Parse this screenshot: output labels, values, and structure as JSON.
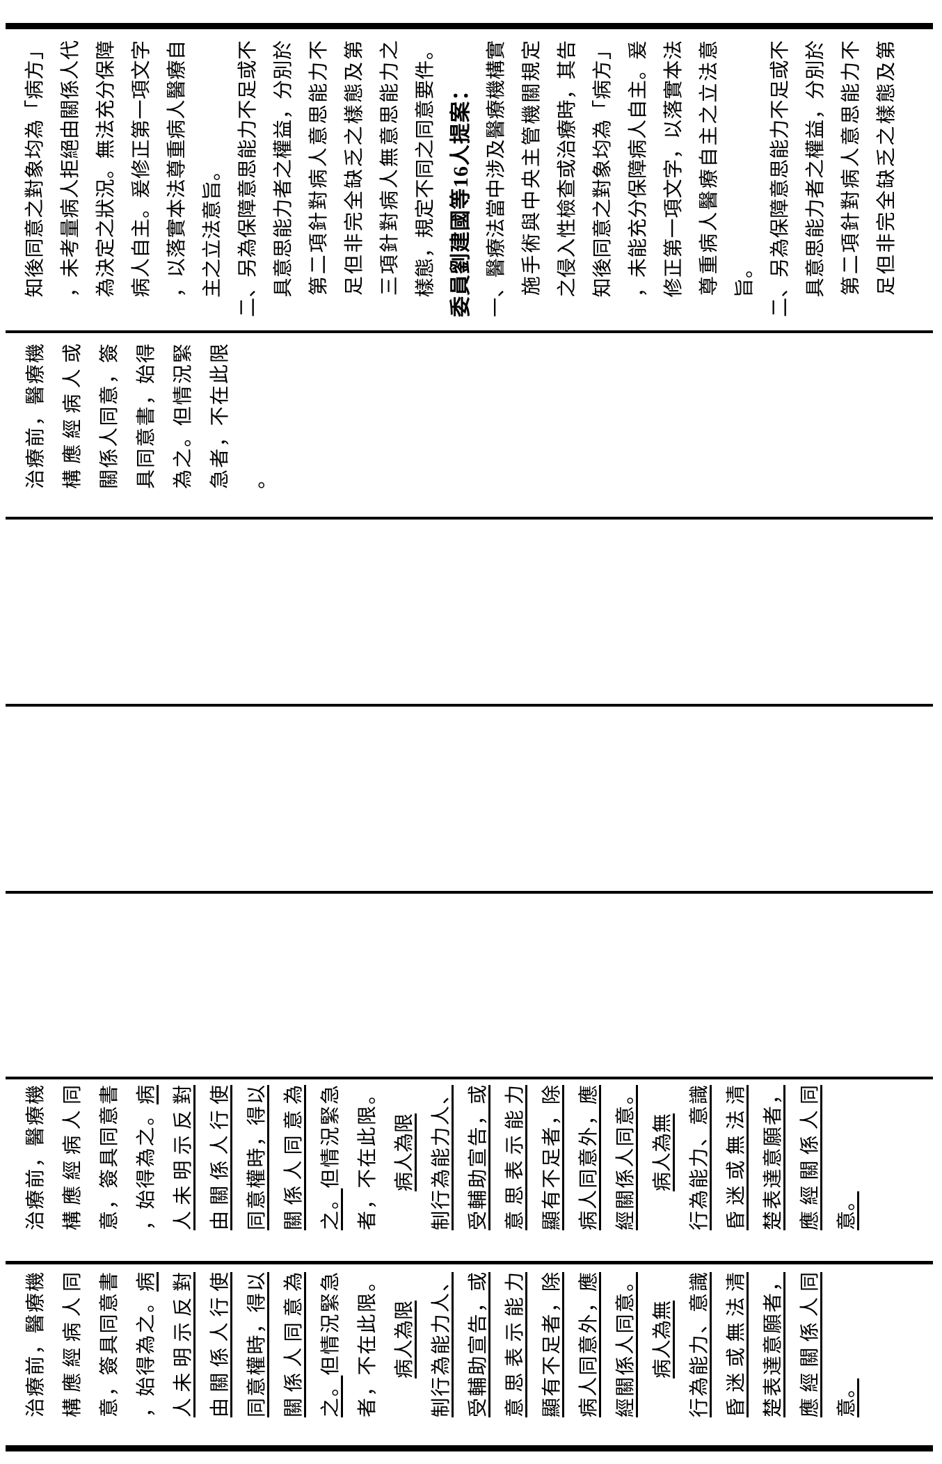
{
  "page": {
    "background_color": "#ffffff",
    "ink_color": "#000000",
    "description": "Rotated scanned page of a Legislative Yuan bill comparison table (醫療法 amendment)",
    "orientation": "landscape table rotated 90deg counter-clockwise on portrait page"
  },
  "table": {
    "line_sets": {
      "proposal_lines": [
        {
          "seg": [
            {
              "t": "治療前，醫療機"
            }
          ]
        },
        {
          "seg": [
            {
              "t": "構應經病人同"
            }
          ]
        },
        {
          "seg": [
            {
              "t": "意，簽具同意書"
            }
          ]
        },
        {
          "seg": [
            {
              "t": "，始得為之。"
            },
            {
              "t": "病",
              "u": true
            }
          ]
        },
        {
          "seg": [
            {
              "t": "人未明示反對",
              "u": true
            }
          ]
        },
        {
          "seg": [
            {
              "t": "由關係人行使",
              "u": true
            }
          ]
        },
        {
          "seg": [
            {
              "t": "同意權時，得以",
              "u": true
            }
          ]
        },
        {
          "seg": [
            {
              "t": "關係人同意為",
              "u": true
            }
          ]
        },
        {
          "seg": [
            {
              "t": "之。",
              "u": true
            },
            {
              "t": "但情況緊急"
            }
          ]
        },
        {
          "seg": [
            {
              "t": "者，不在此限。"
            }
          ]
        },
        {
          "seg": [
            {
              "t": "　　"
            },
            {
              "t": "病人為限",
              "u": true
            }
          ],
          "short": true
        },
        {
          "seg": [
            {
              "t": "制行為能力人、",
              "u": true
            }
          ]
        },
        {
          "seg": [
            {
              "t": "受輔助宣告，或",
              "u": true
            }
          ]
        },
        {
          "seg": [
            {
              "t": "意思表示能力",
              "u": true
            }
          ]
        },
        {
          "seg": [
            {
              "t": "顯有不足者，除",
              "u": true
            }
          ]
        },
        {
          "seg": [
            {
              "t": "病人同意外，應",
              "u": true
            }
          ]
        },
        {
          "seg": [
            {
              "t": "經關係人同意。",
              "u": true
            }
          ]
        },
        {
          "seg": [
            {
              "t": "　　"
            },
            {
              "t": "病人為無",
              "u": true
            }
          ],
          "short": true
        },
        {
          "seg": [
            {
              "t": "行為能力、意識",
              "u": true
            }
          ]
        },
        {
          "seg": [
            {
              "t": "昏迷或無法清",
              "u": true
            }
          ]
        },
        {
          "seg": [
            {
              "t": "楚表達意願者，",
              "u": true
            }
          ]
        },
        {
          "seg": [
            {
              "t": "應經關係人同",
              "u": true
            }
          ]
        },
        {
          "seg": [
            {
              "t": "意。",
              "u": true
            }
          ],
          "short": true
        }
      ],
      "current_lines": [
        {
          "seg": [
            {
              "t": "治療前，醫療機"
            }
          ]
        },
        {
          "seg": [
            {
              "t": "構應經病人或"
            }
          ]
        },
        {
          "seg": [
            {
              "t": "關係人同意，簽"
            }
          ]
        },
        {
          "seg": [
            {
              "t": "具同意書，始得"
            }
          ]
        },
        {
          "seg": [
            {
              "t": "為之。但情況緊"
            }
          ]
        },
        {
          "seg": [
            {
              "t": "急者，不在此限"
            }
          ]
        },
        {
          "seg": [
            {
              "t": "。"
            }
          ],
          "short": true
        }
      ],
      "explanation_lines": [
        {
          "seg": [
            {
              "t": "　知後同意之對象均為「病方」"
            }
          ]
        },
        {
          "seg": [
            {
              "t": "　，未考量病人拒絕由關係人代"
            }
          ]
        },
        {
          "seg": [
            {
              "t": "　為決定之狀況。無法充分保障"
            }
          ]
        },
        {
          "seg": [
            {
              "t": "　病人自主。爰修正第一項文字"
            }
          ]
        },
        {
          "seg": [
            {
              "t": "　，以落實本法尊重病人醫療自"
            }
          ]
        },
        {
          "seg": [
            {
              "t": "　主之立法意旨。"
            }
          ],
          "short": true
        },
        {
          "seg": [
            {
              "t": "二、另為保障意思能力不足或不"
            }
          ]
        },
        {
          "seg": [
            {
              "t": "　具意思能力者之權益，分別於"
            }
          ]
        },
        {
          "seg": [
            {
              "t": "　第二項針對病人意思能力不"
            }
          ]
        },
        {
          "seg": [
            {
              "t": "　足但非完全缺乏之樣態及第"
            }
          ]
        },
        {
          "seg": [
            {
              "t": "　三項針對病人無意思能力之"
            }
          ]
        },
        {
          "seg": [
            {
              "t": "　樣態，規定不同之同意要件。"
            }
          ]
        },
        {
          "seg": [
            {
              "t": "委員劉建國等16人提案："
            }
          ],
          "short": true,
          "bold": true
        },
        {
          "seg": [
            {
              "t": "一、醫療法當中涉及醫療機構實"
            }
          ]
        },
        {
          "seg": [
            {
              "t": "　施手術與中央主管機關規定"
            }
          ]
        },
        {
          "seg": [
            {
              "t": "　之侵入性檢查或治療時，其告"
            }
          ]
        },
        {
          "seg": [
            {
              "t": "　知後同意之對象均為「病方」"
            }
          ]
        },
        {
          "seg": [
            {
              "t": "　，未能充分保障病人自主。爰"
            }
          ]
        },
        {
          "seg": [
            {
              "t": "　修正第一項文字，以落實本法"
            }
          ]
        },
        {
          "seg": [
            {
              "t": "　尊重病人醫療自主之立法意"
            }
          ]
        },
        {
          "seg": [
            {
              "t": "　旨。"
            }
          ],
          "short": true
        },
        {
          "seg": [
            {
              "t": "二、另為保障意思能力不足或不"
            }
          ]
        },
        {
          "seg": [
            {
              "t": "　具意思能力者之權益，分別於"
            }
          ]
        },
        {
          "seg": [
            {
              "t": "　第二項針對病人意思能力不"
            }
          ]
        },
        {
          "seg": [
            {
              "t": "　足但非完全缺乏之樣態及第"
            }
          ]
        }
      ]
    },
    "columns": [
      {
        "id": "review",
        "role": "committee review result text",
        "lines_ref": "proposal_lines"
      },
      {
        "id": "proposal",
        "role": "proposed amendment text",
        "lines_ref": "proposal_lines"
      },
      {
        "id": "empty-a",
        "role": "empty proposal column"
      },
      {
        "id": "empty-b",
        "role": "empty proposal column"
      },
      {
        "id": "empty-c",
        "role": "empty proposal column"
      },
      {
        "id": "current",
        "role": "current statute text",
        "lines_ref": "current_lines"
      },
      {
        "id": "explanation",
        "role": "explanation notes",
        "lines_ref": "explanation_lines"
      }
    ]
  }
}
